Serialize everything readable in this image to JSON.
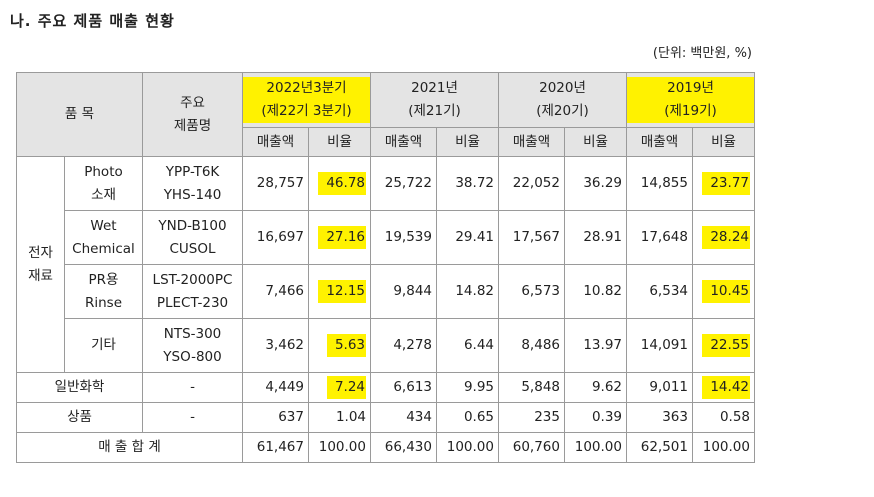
{
  "title": "나.  주요 제품 매출 현황",
  "unit": "(단위: 백만원, %)",
  "header": {
    "item": "품  목",
    "product_l1": "주요",
    "product_l2": "제품명",
    "periods": [
      {
        "l1": "2022년3분기",
        "l2": "(제22기 3분기)",
        "highlight": true
      },
      {
        "l1": "2021년",
        "l2": "(제21기)",
        "highlight": false
      },
      {
        "l1": "2020년",
        "l2": "(제20기)",
        "highlight": false
      },
      {
        "l1": "2019년",
        "l2": "(제19기)",
        "highlight": true
      }
    ],
    "sales": "매출액",
    "ratio": "비율"
  },
  "group_label_l1": "전자",
  "group_label_l2": "재료",
  "rows": [
    {
      "sub_l1": "Photo",
      "sub_l2": "소재",
      "prod_l1": "YPP-T6K",
      "prod_l2": "YHS-140",
      "v": [
        "28,757",
        "46.78",
        "25,722",
        "38.72",
        "22,052",
        "36.29",
        "14,855",
        "23.77"
      ]
    },
    {
      "sub_l1": "Wet",
      "sub_l2": "Chemical",
      "prod_l1": "YND-B100",
      "prod_l2": "CUSOL",
      "v": [
        "16,697",
        "27.16",
        "19,539",
        "29.41",
        "17,567",
        "28.91",
        "17,648",
        "28.24"
      ]
    },
    {
      "sub_l1": "PR용",
      "sub_l2": "Rinse",
      "prod_l1": "LST-2000PC",
      "prod_l2": "PLECT-230",
      "v": [
        "7,466",
        "12.15",
        "9,844",
        "14.82",
        "6,573",
        "10.82",
        "6,534",
        "10.45"
      ]
    },
    {
      "sub_l1": "기타",
      "prod_l1": "NTS-300",
      "prod_l2": "YSO-800",
      "v": [
        "3,462",
        "5.63",
        "4,278",
        "6.44",
        "8,486",
        "13.97",
        "14,091",
        "22.55"
      ]
    },
    {
      "label": "일반화학",
      "prod": "-",
      "v": [
        "4,449",
        "7.24",
        "6,613",
        "9.95",
        "5,848",
        "9.62",
        "9,011",
        "14.42"
      ]
    },
    {
      "label": "상품",
      "prod": "-",
      "v": [
        "637",
        "1.04",
        "434",
        "0.65",
        "235",
        "0.39",
        "363",
        "0.58"
      ]
    },
    {
      "label": "매 출 합 계",
      "v": [
        "61,467",
        "100.00",
        "66,430",
        "100.00",
        "60,760",
        "100.00",
        "62,501",
        "100.00"
      ]
    }
  ],
  "highlight_color": "#fff200",
  "header_bg": "#e4e4e4",
  "border_color": "#9a9a9a"
}
